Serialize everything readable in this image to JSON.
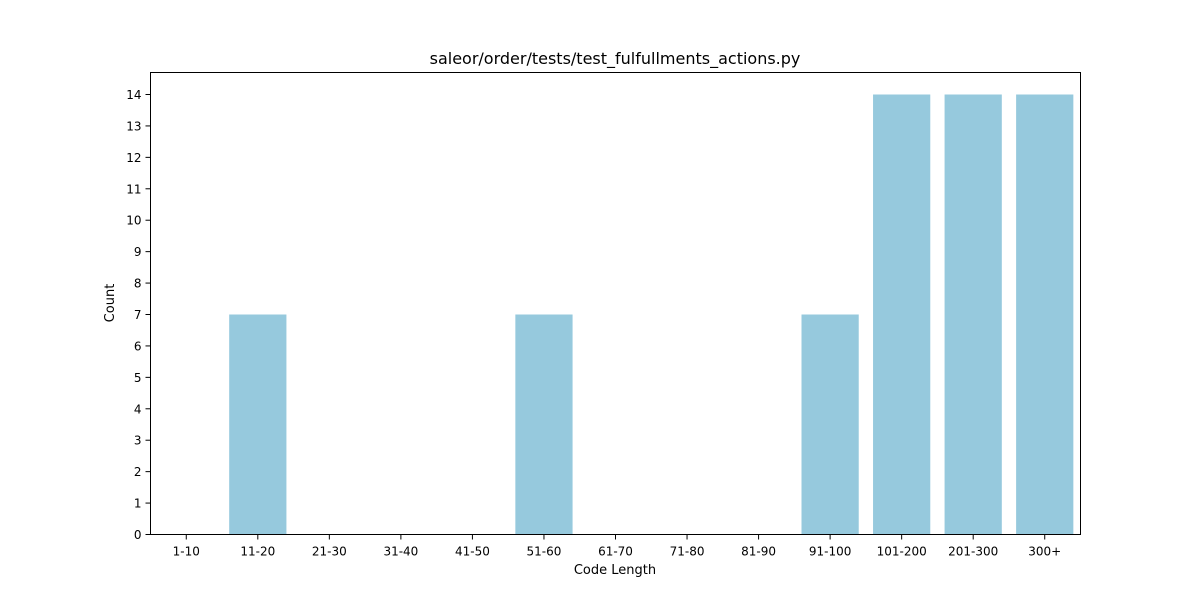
{
  "chart_data": {
    "type": "bar",
    "title": "saleor/order/tests/test_fulfullments_actions.py",
    "xlabel": "Code Length",
    "ylabel": "Count",
    "categories": [
      "1-10",
      "11-20",
      "21-30",
      "31-40",
      "41-50",
      "51-60",
      "61-70",
      "71-80",
      "81-90",
      "91-100",
      "101-200",
      "201-300",
      "300+"
    ],
    "values": [
      0,
      7,
      0,
      0,
      0,
      7,
      0,
      0,
      0,
      7,
      14,
      14,
      14
    ],
    "ylim": [
      0,
      14.7
    ],
    "yticks": [
      0,
      1,
      2,
      3,
      4,
      5,
      6,
      7,
      8,
      9,
      10,
      11,
      12,
      13,
      14
    ],
    "bar_color": "#96c9dd",
    "grid": false,
    "legend": "none"
  }
}
